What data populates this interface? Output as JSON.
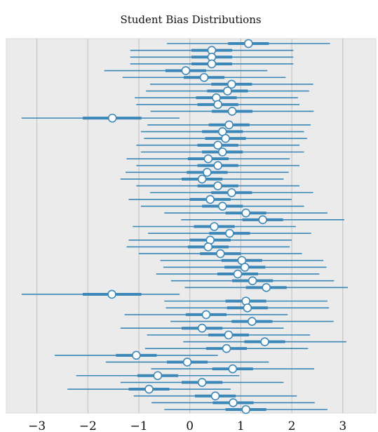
{
  "chart_data": {
    "type": "forest",
    "title": "Student Bias Distributions",
    "xlabel": "",
    "ylabel": "",
    "xlim": [
      -3.6,
      3.65
    ],
    "xticks": [
      -3,
      -2,
      -1,
      0,
      1,
      2,
      3
    ],
    "xtick_labels": [
      "−3",
      "−2",
      "−1",
      "0",
      "1",
      "2",
      "3"
    ],
    "grid": "vertical",
    "colors": {
      "line": "#3a87b8",
      "marker_fill": "#ffffff",
      "background": "#ebebeb",
      "grid": "#bfbfbf"
    },
    "n_rows": 55,
    "means": [
      1.15,
      0.43,
      0.43,
      0.43,
      -0.08,
      0.28,
      0.82,
      0.74,
      0.52,
      0.55,
      0.83,
      -1.52,
      0.77,
      0.64,
      0.7,
      0.55,
      0.64,
      0.36,
      0.55,
      0.34,
      0.24,
      0.55,
      0.82,
      0.4,
      0.64,
      1.1,
      1.43,
      0.48,
      0.78,
      0.4,
      0.36,
      0.6,
      1.02,
      1.08,
      0.94,
      1.23,
      1.5,
      -1.53,
      1.1,
      1.13,
      0.32,
      1.22,
      0.24,
      0.76,
      1.47,
      0.72,
      -1.05,
      -0.05,
      0.84,
      -0.63,
      0.24,
      -0.8,
      0.5,
      0.85,
      1.1
    ],
    "hdi_50": [
      [
        0.75,
        1.55
      ],
      [
        0.03,
        0.83
      ],
      [
        0.03,
        0.83
      ],
      [
        0.03,
        0.83
      ],
      [
        -0.48,
        0.32
      ],
      [
        -0.12,
        0.68
      ],
      [
        0.42,
        1.22
      ],
      [
        0.34,
        1.14
      ],
      [
        0.12,
        0.92
      ],
      [
        0.15,
        0.95
      ],
      [
        0.43,
        1.23
      ],
      [
        -2.1,
        -0.95
      ],
      [
        0.37,
        1.17
      ],
      [
        0.24,
        1.04
      ],
      [
        0.3,
        1.1
      ],
      [
        0.15,
        0.95
      ],
      [
        0.24,
        1.04
      ],
      [
        -0.04,
        0.76
      ],
      [
        0.15,
        0.95
      ],
      [
        -0.06,
        0.74
      ],
      [
        -0.16,
        0.64
      ],
      [
        0.15,
        0.95
      ],
      [
        0.42,
        1.22
      ],
      [
        0.0,
        0.8
      ],
      [
        0.24,
        1.04
      ],
      [
        0.7,
        1.5
      ],
      [
        1.03,
        1.83
      ],
      [
        0.08,
        0.88
      ],
      [
        0.38,
        1.18
      ],
      [
        0.0,
        0.8
      ],
      [
        -0.04,
        0.76
      ],
      [
        0.2,
        1.0
      ],
      [
        0.62,
        1.42
      ],
      [
        0.68,
        1.48
      ],
      [
        0.54,
        1.34
      ],
      [
        0.83,
        1.63
      ],
      [
        1.1,
        1.9
      ],
      [
        -2.1,
        -0.95
      ],
      [
        0.7,
        1.5
      ],
      [
        0.73,
        1.53
      ],
      [
        -0.08,
        0.72
      ],
      [
        0.82,
        1.62
      ],
      [
        -0.16,
        0.64
      ],
      [
        0.36,
        1.16
      ],
      [
        1.07,
        1.87
      ],
      [
        0.32,
        1.12
      ],
      [
        -1.45,
        -0.65
      ],
      [
        -0.45,
        0.35
      ],
      [
        0.44,
        1.24
      ],
      [
        -1.03,
        -0.23
      ],
      [
        -0.16,
        0.64
      ],
      [
        -1.2,
        -0.4
      ],
      [
        0.1,
        0.9
      ],
      [
        0.45,
        1.25
      ],
      [
        0.7,
        1.5
      ]
    ],
    "hdi_94": [
      [
        -0.45,
        2.75
      ],
      [
        -1.17,
        2.03
      ],
      [
        -1.17,
        2.03
      ],
      [
        -1.17,
        2.03
      ],
      [
        -1.68,
        1.52
      ],
      [
        -1.32,
        1.88
      ],
      [
        -0.78,
        2.42
      ],
      [
        -0.86,
        2.34
      ],
      [
        -1.08,
        2.12
      ],
      [
        -1.05,
        2.15
      ],
      [
        -0.77,
        2.43
      ],
      [
        -3.3,
        -0.2
      ],
      [
        -0.83,
        2.37
      ],
      [
        -0.96,
        2.24
      ],
      [
        -0.9,
        2.3
      ],
      [
        -1.05,
        2.15
      ],
      [
        -0.96,
        2.24
      ],
      [
        -1.24,
        1.96
      ],
      [
        -1.05,
        2.15
      ],
      [
        -1.26,
        1.94
      ],
      [
        -1.36,
        1.84
      ],
      [
        -1.05,
        2.15
      ],
      [
        -0.78,
        2.42
      ],
      [
        -1.2,
        2.0
      ],
      [
        -0.96,
        2.24
      ],
      [
        -0.5,
        2.7
      ],
      [
        -0.17,
        3.03
      ],
      [
        -1.12,
        2.08
      ],
      [
        -0.82,
        2.38
      ],
      [
        -1.2,
        2.0
      ],
      [
        -1.24,
        1.96
      ],
      [
        -1.0,
        2.2
      ],
      [
        -0.58,
        2.62
      ],
      [
        -0.52,
        2.68
      ],
      [
        -0.66,
        2.54
      ],
      [
        -0.37,
        2.83
      ],
      [
        -0.1,
        3.1
      ],
      [
        -3.3,
        -0.2
      ],
      [
        -0.5,
        2.7
      ],
      [
        -0.47,
        2.73
      ],
      [
        -1.28,
        1.92
      ],
      [
        -0.38,
        2.82
      ],
      [
        -1.36,
        1.84
      ],
      [
        -0.84,
        2.36
      ],
      [
        -0.13,
        3.07
      ],
      [
        -0.88,
        2.32
      ],
      [
        -2.65,
        0.55
      ],
      [
        -1.65,
        1.55
      ],
      [
        -0.76,
        2.44
      ],
      [
        -2.23,
        0.97
      ],
      [
        -1.36,
        1.84
      ],
      [
        -2.4,
        0.8
      ],
      [
        -1.1,
        2.1
      ],
      [
        -0.75,
        2.45
      ],
      [
        -0.5,
        2.7
      ]
    ]
  }
}
